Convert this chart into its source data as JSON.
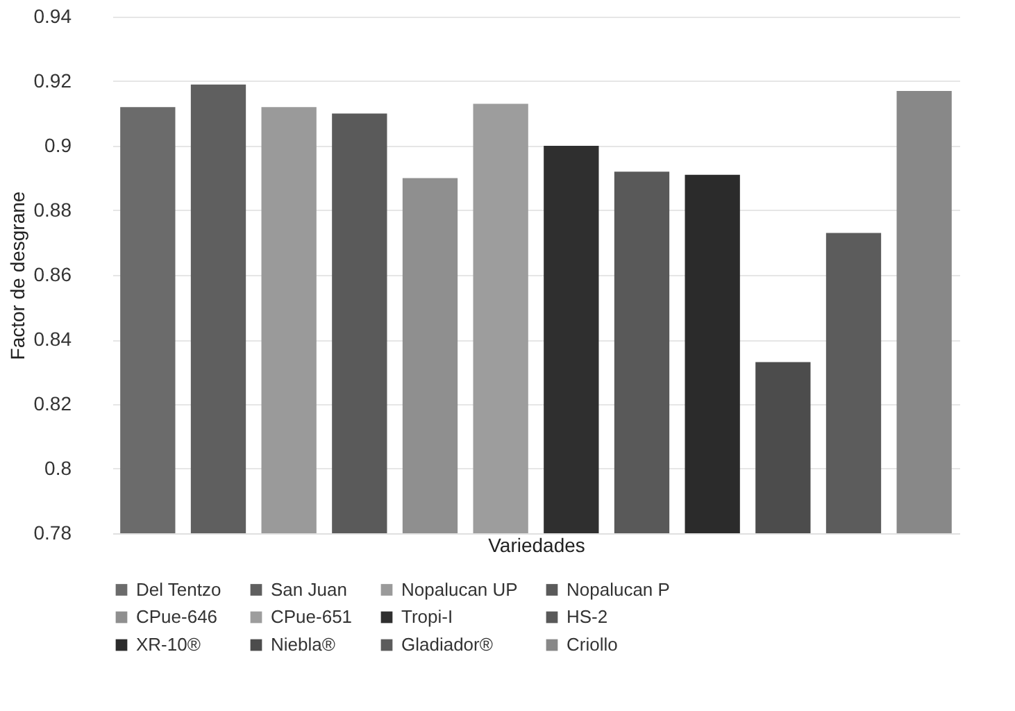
{
  "chart_data": {
    "type": "bar",
    "xlabel": "Variedades",
    "ylabel": "Factor de desgrane",
    "categories": [
      null,
      null,
      null,
      null,
      null,
      null,
      null,
      null,
      null,
      null,
      null,
      null
    ],
    "series": [
      {
        "name": "Del Tentzo",
        "color": "#6b6b6b",
        "values": [
          0.912,
          null,
          null,
          null,
          null,
          null,
          null,
          null,
          null,
          null,
          null,
          null
        ]
      },
      {
        "name": "San Juan",
        "color": "#5f5f5f",
        "values": [
          null,
          0.919,
          null,
          null,
          null,
          null,
          null,
          null,
          null,
          null,
          null,
          null
        ]
      },
      {
        "name": "Nopalucan UP",
        "color": "#9a9a9a",
        "values": [
          null,
          null,
          0.912,
          null,
          null,
          null,
          null,
          null,
          null,
          null,
          null,
          null
        ]
      },
      {
        "name": "Nopalucan P",
        "color": "#5a5a5a",
        "values": [
          null,
          null,
          null,
          0.91,
          null,
          null,
          null,
          null,
          null,
          null,
          null,
          null
        ]
      },
      {
        "name": "CPue-646",
        "color": "#8f8f8f",
        "values": [
          null,
          null,
          null,
          null,
          0.89,
          null,
          null,
          null,
          null,
          null,
          null,
          null
        ]
      },
      {
        "name": "CPue-651",
        "color": "#9d9d9d",
        "values": [
          null,
          null,
          null,
          null,
          null,
          0.913,
          null,
          null,
          null,
          null,
          null,
          null
        ]
      },
      {
        "name": "Tropi-I",
        "color": "#2f2f2f",
        "values": [
          null,
          null,
          null,
          null,
          null,
          null,
          0.9,
          null,
          null,
          null,
          null,
          null
        ]
      },
      {
        "name": "HS-2",
        "color": "#595959",
        "values": [
          null,
          null,
          null,
          null,
          null,
          null,
          null,
          0.892,
          null,
          null,
          null,
          null
        ]
      },
      {
        "name": "XR-10®",
        "color": "#2b2b2b",
        "values": [
          null,
          null,
          null,
          null,
          null,
          null,
          null,
          null,
          0.891,
          null,
          null,
          null
        ]
      },
      {
        "name": "Niebla®",
        "color": "#4c4c4c",
        "values": [
          null,
          null,
          null,
          null,
          null,
          null,
          null,
          null,
          null,
          0.833,
          null,
          null
        ]
      },
      {
        "name": "Gladiador®",
        "color": "#5c5c5c",
        "values": [
          null,
          null,
          null,
          null,
          null,
          null,
          null,
          null,
          null,
          null,
          0.873,
          null
        ]
      },
      {
        "name": "Criollo",
        "color": "#888888",
        "values": [
          null,
          null,
          null,
          null,
          null,
          null,
          null,
          null,
          null,
          null,
          null,
          0.917
        ]
      }
    ],
    "ylim": [
      0.78,
      0.94
    ],
    "yticks": [
      0.78,
      0.8,
      0.82,
      0.84,
      0.86,
      0.88,
      0.9,
      0.92,
      0.94
    ],
    "grid": "y",
    "legend": "bottom",
    "tick_labels": "y"
  }
}
